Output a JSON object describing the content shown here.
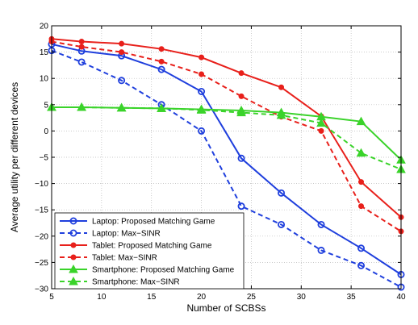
{
  "chart_data": {
    "type": "line",
    "title": "",
    "xlabel": "Number of SCBSs",
    "ylabel": "Average utility per different devices",
    "xlim": [
      5,
      40
    ],
    "ylim": [
      -30,
      20
    ],
    "x_ticks": [
      5,
      10,
      15,
      20,
      25,
      30,
      35,
      40
    ],
    "y_ticks": [
      -30,
      -25,
      -20,
      -15,
      -10,
      -5,
      0,
      5,
      10,
      15,
      20
    ],
    "grid": true,
    "legend_position": "bottom-left",
    "x": [
      5,
      8,
      12,
      16,
      20,
      24,
      28,
      32,
      36,
      40
    ],
    "series": [
      {
        "name": "Laptop: Proposed Matching Game",
        "color": "#1f3fdd",
        "dashed": false,
        "marker": "circle",
        "values": [
          16.5,
          15.2,
          14.3,
          11.7,
          7.5,
          -5.2,
          -11.8,
          -17.8,
          -22.3,
          -27.3
        ]
      },
      {
        "name": "Laptop: Max−SINR",
        "color": "#1f3fdd",
        "dashed": true,
        "marker": "circle",
        "values": [
          15.3,
          13.1,
          9.6,
          5.0,
          0.0,
          -14.3,
          -17.8,
          -22.7,
          -25.6,
          -29.7
        ]
      },
      {
        "name": "Tablet: Proposed Matching Game",
        "color": "#e8201b",
        "dashed": false,
        "marker": "dot",
        "values": [
          17.5,
          17.0,
          16.6,
          15.6,
          14.0,
          11.0,
          8.3,
          2.8,
          -9.7,
          -16.4
        ]
      },
      {
        "name": "Tablet: Max−SINR",
        "color": "#e8201b",
        "dashed": true,
        "marker": "dot",
        "values": [
          17.0,
          16.0,
          15.0,
          13.2,
          10.8,
          6.6,
          2.7,
          0.0,
          -14.3,
          -19.1
        ]
      },
      {
        "name": "Smartphone: Proposed Matching Game",
        "color": "#3ad32a",
        "dashed": false,
        "marker": "triangle",
        "values": [
          4.5,
          4.5,
          4.4,
          4.3,
          4.1,
          3.9,
          3.5,
          2.7,
          1.8,
          -5.5
        ]
      },
      {
        "name": "Smartphone: Max−SINR",
        "color": "#3ad32a",
        "dashed": true,
        "marker": "triangle",
        "values": [
          4.5,
          4.5,
          4.4,
          4.3,
          4.0,
          3.5,
          3.0,
          1.5,
          -4.2,
          -7.3
        ]
      }
    ]
  }
}
